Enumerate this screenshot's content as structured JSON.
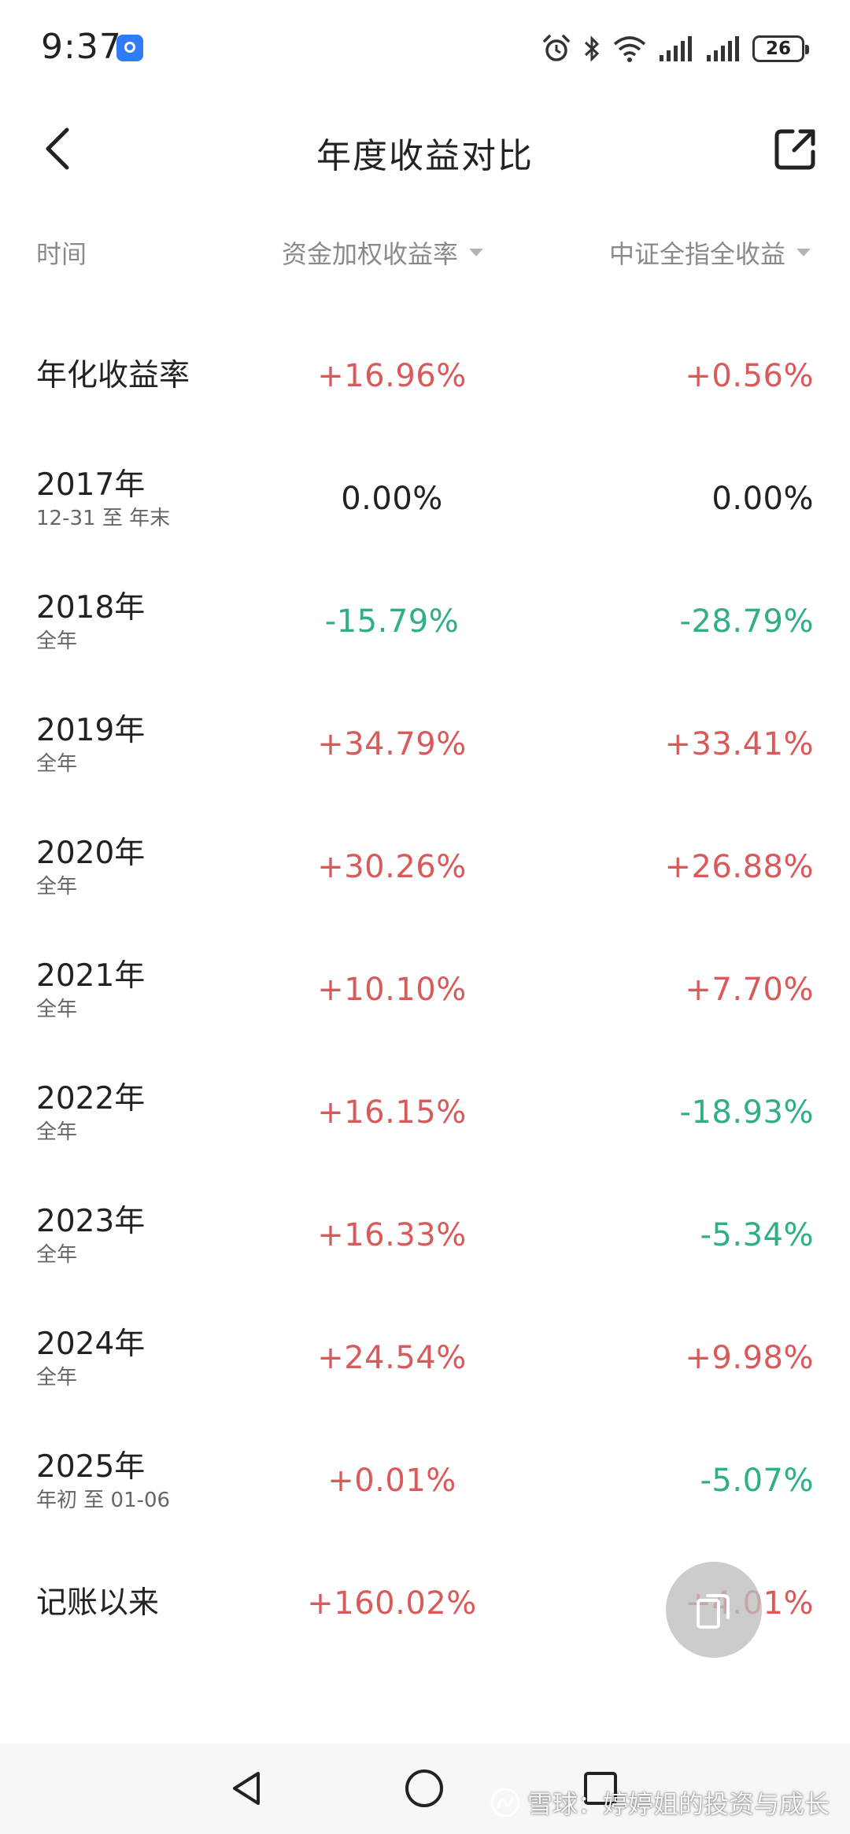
{
  "status_bar": {
    "time": "9:37",
    "battery": "26"
  },
  "header": {
    "title": "年度收益对比"
  },
  "columns": {
    "time": "时间",
    "weighted": "资金加权收益率",
    "index": "中证全指全收益"
  },
  "rows": [
    {
      "title": "年化收益率",
      "sub": "",
      "weighted": "+16.96%",
      "weighted_sign": "pos",
      "index": "+0.56%",
      "index_sign": "pos"
    },
    {
      "title": "2017年",
      "sub": "12-31 至 年末",
      "weighted": "0.00%",
      "weighted_sign": "zero",
      "index": "0.00%",
      "index_sign": "zero"
    },
    {
      "title": "2018年",
      "sub": "全年",
      "weighted": "-15.79%",
      "weighted_sign": "neg",
      "index": "-28.79%",
      "index_sign": "neg"
    },
    {
      "title": "2019年",
      "sub": "全年",
      "weighted": "+34.79%",
      "weighted_sign": "pos",
      "index": "+33.41%",
      "index_sign": "pos"
    },
    {
      "title": "2020年",
      "sub": "全年",
      "weighted": "+30.26%",
      "weighted_sign": "pos",
      "index": "+26.88%",
      "index_sign": "pos"
    },
    {
      "title": "2021年",
      "sub": "全年",
      "weighted": "+10.10%",
      "weighted_sign": "pos",
      "index": "+7.70%",
      "index_sign": "pos"
    },
    {
      "title": "2022年",
      "sub": "全年",
      "weighted": "+16.15%",
      "weighted_sign": "pos",
      "index": "-18.93%",
      "index_sign": "neg"
    },
    {
      "title": "2023年",
      "sub": "全年",
      "weighted": "+16.33%",
      "weighted_sign": "pos",
      "index": "-5.34%",
      "index_sign": "neg"
    },
    {
      "title": "2024年",
      "sub": "全年",
      "weighted": "+24.54%",
      "weighted_sign": "pos",
      "index": "+9.98%",
      "index_sign": "pos"
    },
    {
      "title": "2025年",
      "sub": "年初 至 01-06",
      "weighted": "+0.01%",
      "weighted_sign": "pos",
      "index": "-5.07%",
      "index_sign": "neg"
    },
    {
      "title": "记账以来",
      "sub": "",
      "weighted": "+160.02%",
      "weighted_sign": "pos",
      "index": "+4.01%",
      "index_sign": "pos"
    }
  ],
  "watermark": {
    "text": "雪球：婷婷姐的投资与成长"
  },
  "colors": {
    "positive": "#d85a5a",
    "negative": "#2fae87",
    "neutral": "#222222",
    "header_text": "#8a8a8a"
  },
  "icons": {
    "back": "chevron-left-icon",
    "share": "share-external-icon",
    "float": "copy-icon",
    "nav_back": "triangle-back-icon",
    "nav_home": "circle-home-icon",
    "nav_recent": "square-recent-icon"
  }
}
